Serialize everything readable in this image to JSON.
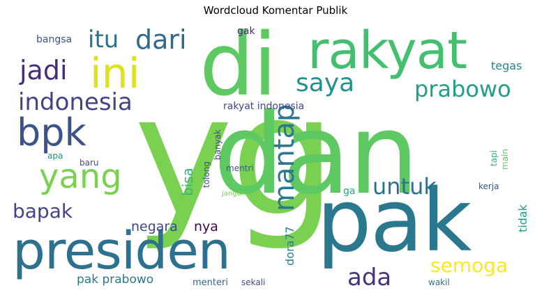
{
  "chart_data": {
    "type": "wordcloud",
    "title": "Wordcloud Komentar Publik",
    "colormap": "viridis",
    "background": "#ffffff",
    "words": [
      {
        "text": "yg",
        "weight": 100,
        "color": "#7ad151"
      },
      {
        "text": "dan",
        "weight": 64,
        "color": "#5ec962"
      },
      {
        "text": "pak",
        "weight": 48,
        "color": "#2a788e"
      },
      {
        "text": "di",
        "weight": 46,
        "color": "#5ec962"
      },
      {
        "text": "rakyat",
        "weight": 36,
        "color": "#44bf70"
      },
      {
        "text": "presiden",
        "weight": 34,
        "color": "#2c718e"
      },
      {
        "text": "ini",
        "weight": 26,
        "color": "#dde318"
      },
      {
        "text": "bpk",
        "weight": 26,
        "color": "#3b528b"
      },
      {
        "text": "yang",
        "weight": 24,
        "color": "#7ad151"
      },
      {
        "text": "mantap",
        "weight": 20,
        "color": "#2a788e"
      },
      {
        "text": "itu",
        "weight": 20,
        "color": "#2c728e"
      },
      {
        "text": "dari",
        "weight": 20,
        "color": "#31688e"
      },
      {
        "text": "jadi",
        "weight": 19,
        "color": "#472c7a"
      },
      {
        "text": "indonesia",
        "weight": 18,
        "color": "#414487"
      },
      {
        "text": "saya",
        "weight": 18,
        "color": "#21918c"
      },
      {
        "text": "prabowo",
        "weight": 17,
        "color": "#1f9e89"
      },
      {
        "text": "untuk",
        "weight": 16,
        "color": "#2c728e"
      },
      {
        "text": "ada",
        "weight": 16,
        "color": "#46337e"
      },
      {
        "text": "bapak",
        "weight": 15,
        "color": "#414487"
      },
      {
        "text": "semoga",
        "weight": 15,
        "color": "#fde725"
      },
      {
        "text": "bisa",
        "weight": 11,
        "color": "#35b779"
      },
      {
        "text": "negara",
        "weight": 10,
        "color": "#3e4989"
      },
      {
        "text": "nya",
        "weight": 10,
        "color": "#440154"
      },
      {
        "text": "pak prabowo",
        "weight": 10,
        "color": "#2a788e"
      },
      {
        "text": "dora77",
        "weight": 9,
        "color": "#277f8e"
      },
      {
        "text": "tidak",
        "weight": 9,
        "color": "#1f988b"
      },
      {
        "text": "tegas",
        "weight": 9,
        "color": "#26828e"
      },
      {
        "text": "bangsa",
        "weight": 8,
        "color": "#3b528b"
      },
      {
        "text": "rakyat indonesia",
        "weight": 8,
        "color": "#404688"
      },
      {
        "text": "gak",
        "weight": 8,
        "color": "#482878"
      },
      {
        "text": "ga",
        "weight": 8,
        "color": "#21a685"
      },
      {
        "text": "tolong",
        "weight": 7,
        "color": "#3b528b"
      },
      {
        "text": "banyak",
        "weight": 7,
        "color": "#404688"
      },
      {
        "text": "menteri",
        "weight": 8,
        "color": "#31688e"
      },
      {
        "text": "sekali",
        "weight": 7,
        "color": "#3e4a89"
      },
      {
        "text": "wakil",
        "weight": 7,
        "color": "#2d708e"
      },
      {
        "text": "kerja",
        "weight": 7,
        "color": "#3b528b"
      },
      {
        "text": "main",
        "weight": 7,
        "color": "#5ec962"
      },
      {
        "text": "tapi",
        "weight": 7,
        "color": "#31b57b"
      },
      {
        "text": "mentri",
        "weight": 7,
        "color": "#38588c"
      },
      {
        "text": "baru",
        "weight": 7,
        "color": "#3d4e8a"
      },
      {
        "text": "apa",
        "weight": 7,
        "color": "#1f958b"
      },
      {
        "text": "jangan",
        "weight": 5,
        "color": "#7ad151"
      }
    ]
  }
}
